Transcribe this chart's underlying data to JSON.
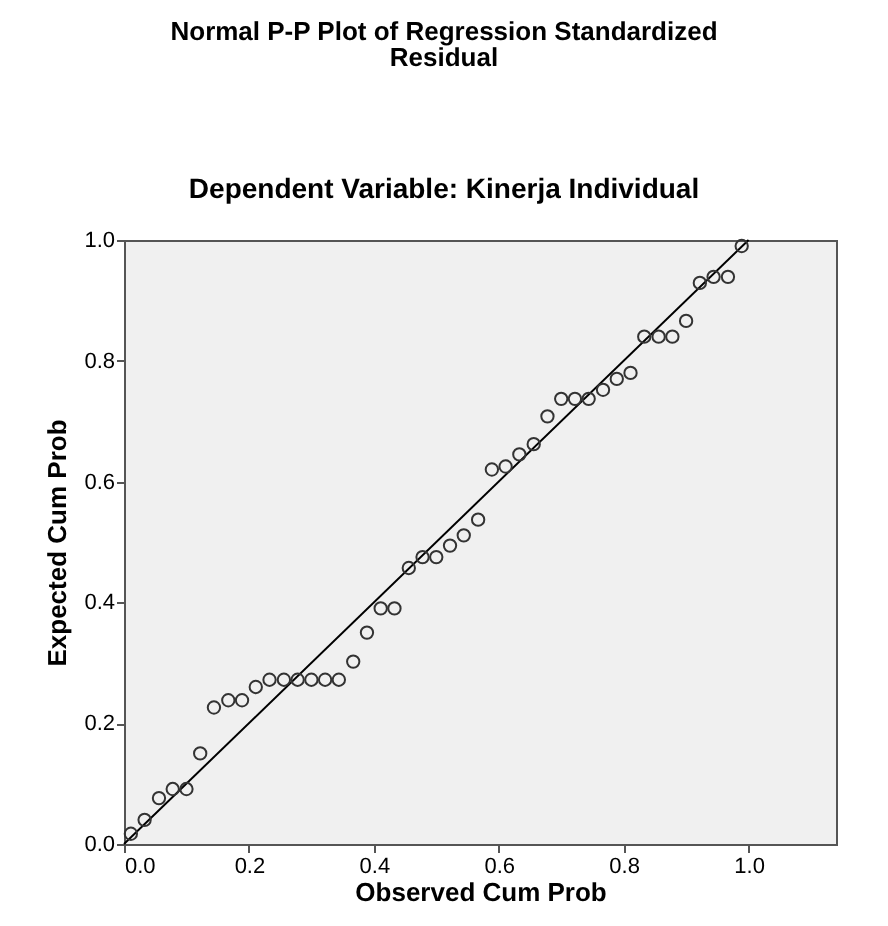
{
  "chart_data": {
    "type": "scatter",
    "title": "Normal P-P Plot of Regression Standardized Residual",
    "subtitle": "Dependent Variable: Kinerja Individual",
    "xlabel": "Observed Cum Prob",
    "ylabel": "Expected Cum Prob",
    "xlim": [
      0,
      1.14
    ],
    "ylim": [
      0,
      1
    ],
    "xticks": [
      {
        "value": 0,
        "label": "0.0"
      },
      {
        "value": 0.2,
        "label": "0.2"
      },
      {
        "value": 0.4,
        "label": "0.4"
      },
      {
        "value": 0.6,
        "label": "0.6"
      },
      {
        "value": 0.8,
        "label": "0.8"
      },
      {
        "value": 1,
        "label": "1.0"
      }
    ],
    "yticks": [
      {
        "value": 0,
        "label": "0.0"
      },
      {
        "value": 0.2,
        "label": "0.2"
      },
      {
        "value": 0.4,
        "label": "0.4"
      },
      {
        "value": 0.6,
        "label": "0.6"
      },
      {
        "value": 0.8,
        "label": "0.8"
      },
      {
        "value": 1,
        "label": "1.0"
      }
    ],
    "grid": false,
    "series": [
      {
        "type": "scatter",
        "marker": "circle",
        "color": "#333333",
        "x": [
          0.011,
          0.033,
          0.056,
          0.078,
          0.1,
          0.122,
          0.144,
          0.167,
          0.189,
          0.211,
          0.233,
          0.256,
          0.278,
          0.3,
          0.322,
          0.344,
          0.367,
          0.389,
          0.411,
          0.433,
          0.456,
          0.478,
          0.5,
          0.522,
          0.544,
          0.567,
          0.589,
          0.611,
          0.633,
          0.656,
          0.678,
          0.7,
          0.722,
          0.744,
          0.767,
          0.789,
          0.811,
          0.833,
          0.856,
          0.878,
          0.9,
          0.922,
          0.944,
          0.967,
          0.989
        ],
        "values": [
          0.017,
          0.04,
          0.076,
          0.091,
          0.091,
          0.15,
          0.226,
          0.238,
          0.238,
          0.26,
          0.272,
          0.272,
          0.272,
          0.272,
          0.272,
          0.272,
          0.302,
          0.35,
          0.39,
          0.39,
          0.457,
          0.475,
          0.475,
          0.494,
          0.511,
          0.537,
          0.62,
          0.625,
          0.645,
          0.662,
          0.708,
          0.737,
          0.737,
          0.737,
          0.752,
          0.77,
          0.78,
          0.84,
          0.84,
          0.84,
          0.866,
          0.929,
          0.939,
          0.939,
          0.99
        ]
      },
      {
        "type": "line",
        "color": "#000000",
        "x": [
          0,
          1
        ],
        "values": [
          0,
          1
        ]
      }
    ]
  }
}
